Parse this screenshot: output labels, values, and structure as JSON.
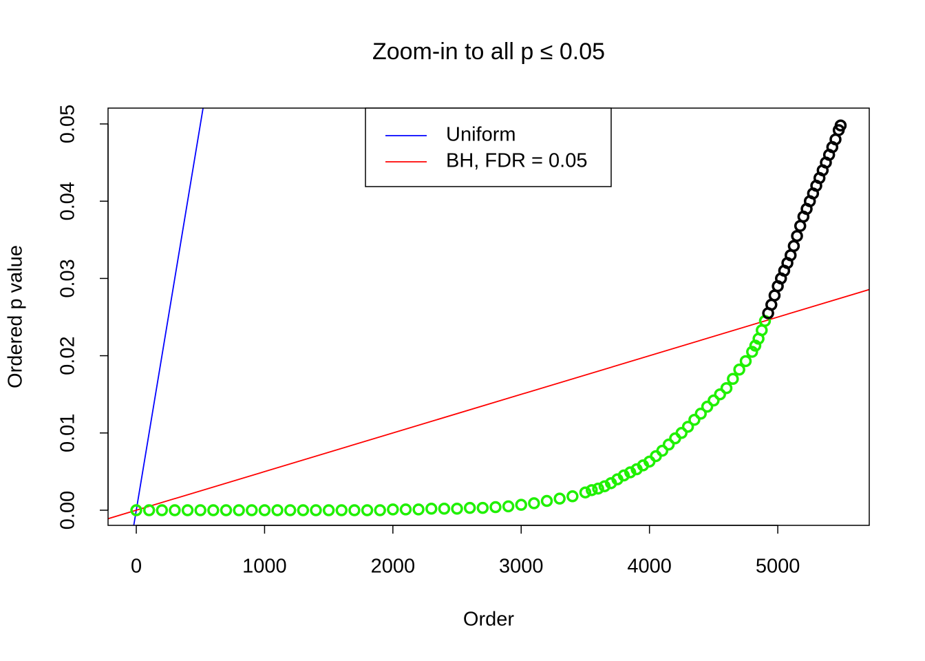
{
  "chart_data": {
    "type": "scatter",
    "title": "Zoom-in to all p ≤ 0.05",
    "x_label": "Order",
    "y_label": "Ordered p value",
    "xlim": [
      -220,
      5713
    ],
    "ylim": [
      -0.00196,
      0.05205
    ],
    "xticks": [
      0,
      1000,
      2000,
      3000,
      4000,
      5000
    ],
    "yticks": [
      {
        "value": 0,
        "label": "0.00"
      },
      0.01,
      0.02,
      0.03,
      0.04,
      0.05
    ],
    "series": [
      {
        "color": "#1ff000",
        "x": [
          0,
          100,
          200,
          300,
          400,
          500,
          600,
          700,
          800,
          900,
          1000,
          1100,
          1200,
          1300,
          1400,
          1500,
          1600,
          1700,
          1800,
          1900,
          2000,
          2100,
          2200,
          2300,
          2400,
          2500,
          2600,
          2700,
          2800,
          2900,
          3000,
          3100,
          3200,
          3300,
          3400,
          3500,
          3550,
          3600,
          3650,
          3700,
          3750,
          3800,
          3850,
          3900,
          3950,
          4000,
          4050,
          4100,
          4150,
          4200,
          4250,
          4300,
          4350,
          4400,
          4450,
          4500,
          4550,
          4600,
          4650,
          4700,
          4750,
          4800,
          4825,
          4850,
          4875,
          4900
        ],
        "values": [
          0,
          0,
          0,
          0,
          0,
          0,
          0,
          0,
          0,
          0,
          0,
          0,
          0,
          0,
          0,
          0,
          0,
          0,
          0,
          0,
          0.0001,
          0.0001,
          0.0001,
          0.0002,
          0.0002,
          0.0002,
          0.0003,
          0.0003,
          0.0004,
          0.0005,
          0.0007,
          0.0009,
          0.0012,
          0.0015,
          0.0018,
          0.0023,
          0.0026,
          0.0028,
          0.0031,
          0.0035,
          0.004,
          0.0045,
          0.0049,
          0.0053,
          0.0058,
          0.0063,
          0.007,
          0.0077,
          0.0085,
          0.0093,
          0.01,
          0.0108,
          0.0117,
          0.0125,
          0.0134,
          0.0142,
          0.015,
          0.0158,
          0.017,
          0.0182,
          0.0193,
          0.0205,
          0.0213,
          0.0222,
          0.0233,
          0.0245
        ]
      },
      {
        "color": "#000000",
        "x": [
          4925,
          4950,
          4975,
          5000,
          5025,
          5050,
          5075,
          5100,
          5125,
          5150,
          5175,
          5200,
          5225,
          5250,
          5275,
          5300,
          5325,
          5350,
          5375,
          5400,
          5425,
          5450,
          5475,
          5490
        ],
        "values": [
          0.0255,
          0.0266,
          0.0278,
          0.029,
          0.03,
          0.031,
          0.032,
          0.033,
          0.0342,
          0.0355,
          0.0368,
          0.038,
          0.039,
          0.04,
          0.041,
          0.042,
          0.043,
          0.044,
          0.045,
          0.046,
          0.047,
          0.048,
          0.0492,
          0.0498
        ]
      }
    ],
    "lines": [
      {
        "name": "Uniform",
        "color": "#0000ff",
        "slope": 0.0001,
        "intercept": 0
      },
      {
        "name": "BH, FDR = 0.05",
        "color": "#ff0000",
        "slope": 5e-06,
        "intercept": 0
      }
    ]
  }
}
